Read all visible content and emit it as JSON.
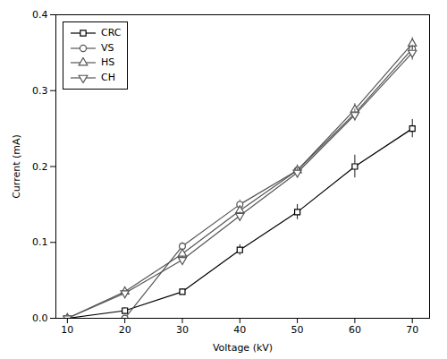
{
  "chart_data": {
    "type": "line",
    "x": [
      10,
      20,
      30,
      40,
      50,
      60,
      70
    ],
    "xlabel": "Voltage (kV)",
    "ylabel": "Current (mA)",
    "xlim": [
      8,
      73
    ],
    "ylim": [
      0.0,
      0.4
    ],
    "xticks": [
      10,
      20,
      30,
      40,
      50,
      60,
      70
    ],
    "yticks": [
      {
        "value": 0.0,
        "label": "0.0"
      },
      0.1,
      0.2,
      0.3,
      0.4
    ],
    "grid": false,
    "legend": "upper left",
    "series": [
      {
        "name": "CRC",
        "color": "#000000",
        "marker": "square",
        "line_style": "solid",
        "values": [
          0.0,
          0.01,
          0.035,
          0.09,
          0.14,
          0.2,
          0.25
        ],
        "errors": [
          0.0,
          0.004,
          0.004,
          0.007,
          0.01,
          0.015,
          0.012
        ]
      },
      {
        "name": "VS",
        "color": "#555555",
        "marker": "circle",
        "line_style": "solid",
        "values": [
          0.0,
          0.0,
          0.095,
          0.15,
          0.195,
          0.27,
          0.355
        ],
        "errors": [
          0.0,
          0.003,
          0.005,
          0.006,
          0.007,
          0.009,
          0.01
        ]
      },
      {
        "name": "HS",
        "color": "#555555",
        "marker": "triangle-up",
        "line_style": "solid",
        "values": [
          0.0,
          0.035,
          0.085,
          0.142,
          0.195,
          0.275,
          0.362
        ],
        "errors": [
          0.0,
          0.004,
          0.005,
          0.006,
          0.007,
          0.008,
          0.008
        ]
      },
      {
        "name": "CH",
        "color": "#555555",
        "marker": "triangle-down",
        "line_style": "solid",
        "values": [
          0.0,
          0.033,
          0.077,
          0.135,
          0.192,
          0.268,
          0.35
        ],
        "errors": [
          0.0,
          0.003,
          0.004,
          0.005,
          0.006,
          0.008,
          0.01
        ]
      }
    ]
  }
}
